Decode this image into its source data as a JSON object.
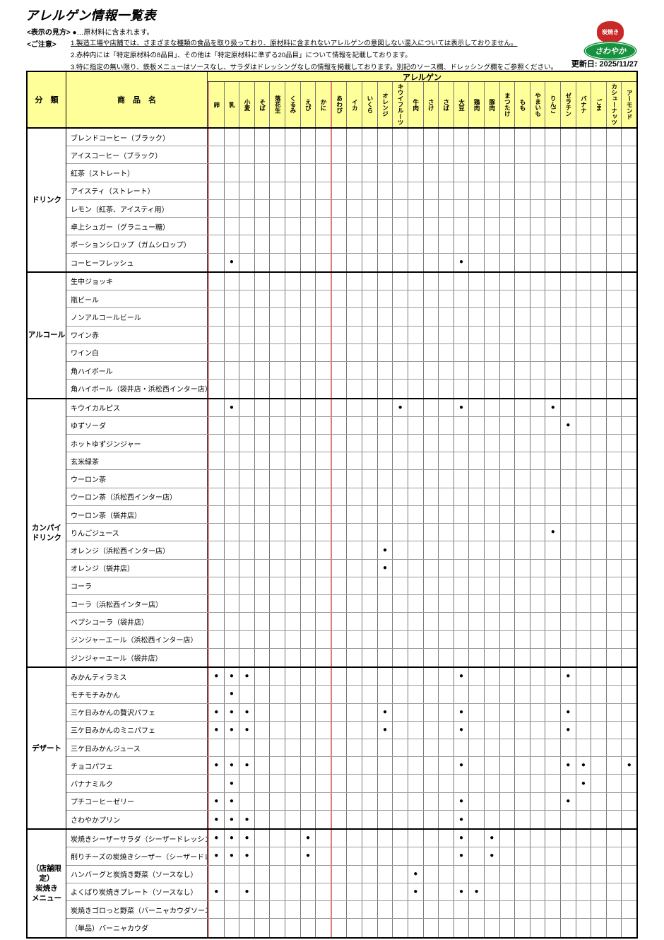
{
  "title": "アレルゲン情報一覧表",
  "legend": {
    "label": "<表示の見方>",
    "text": "●…原材料に含まれます。"
  },
  "notes": {
    "label": "<ご注意>",
    "items": [
      "1.製造工場や店舗では、さまざまな種類の食品を取り扱っており、原材料に含まれないアレルゲンの意図しない混入については表示しておりません。",
      "2.赤枠内には「特定原材料の8品目」、その他は「特定原材料に準ずる20品目」について情報を記載しております。",
      "3.特に指定の無い限り、鉄板メニューはソースなし、サラダはドレッシングなしの情報を掲載しております。別記のソース欄、ドレッシング欄をご参照ください。"
    ]
  },
  "updated": "更新日: 2025/11/27",
  "logo": {
    "top_text": "炭焼き",
    "main_text": "さわやか"
  },
  "colors": {
    "header_yellow": "#ffff99",
    "red_frame": "#e07b7b",
    "logo_red": "#c82828",
    "logo_green": "#17923f"
  },
  "table": {
    "allergen_band": "アレルゲン",
    "col_category": "分　類",
    "col_product": "商　品　名",
    "dot": "●",
    "allergens": [
      "卵",
      "乳",
      "小麦",
      "そば",
      "落花生",
      "くるみ",
      "えび",
      "かに",
      "あわび",
      "イカ",
      "いくら",
      "オレンジ",
      "キウイフルーツ",
      "牛肉",
      "さけ",
      "さば",
      "大豆",
      "鶏肉",
      "豚肉",
      "まつたけ",
      "もも",
      "やまいも",
      "りんご",
      "ゼラチン",
      "バナナ",
      "ごま",
      "カシューナッツ",
      "アーモンド"
    ],
    "red_frame": {
      "start": 0,
      "end": 7
    },
    "sections": [
      {
        "category": "ドリンク",
        "rows": [
          {
            "name": "ブレンドコーヒー（ブラック）",
            "marks": []
          },
          {
            "name": "アイスコーヒー（ブラック）",
            "marks": []
          },
          {
            "name": "紅茶（ストレート）",
            "marks": []
          },
          {
            "name": "アイスティ（ストレート）",
            "marks": []
          },
          {
            "name": "レモン（紅茶、アイスティ用）",
            "marks": []
          },
          {
            "name": "卓上シュガー（グラニュー糖）",
            "marks": []
          },
          {
            "name": "ポーションシロップ（ガムシロップ）",
            "marks": []
          },
          {
            "name": "コーヒーフレッシュ",
            "marks": [
              "乳",
              "大豆"
            ]
          }
        ]
      },
      {
        "category": "アルコール",
        "rows": [
          {
            "name": "生中ジョッキ",
            "marks": []
          },
          {
            "name": "瓶ビール",
            "marks": []
          },
          {
            "name": "ノンアルコールビール",
            "marks": []
          },
          {
            "name": "ワイン赤",
            "marks": []
          },
          {
            "name": "ワイン白",
            "marks": []
          },
          {
            "name": "角ハイボール",
            "marks": []
          },
          {
            "name": "角ハイボール（袋井店・浜松西インター店）",
            "marks": []
          }
        ]
      },
      {
        "category": "カンパイ\nドリンク",
        "rows": [
          {
            "name": "キウイカルピス",
            "marks": [
              "乳",
              "キウイフルーツ",
              "大豆",
              "りんご"
            ]
          },
          {
            "name": "ゆずソーダ",
            "marks": [
              "ゼラチン"
            ]
          },
          {
            "name": "ホットゆずジンジャー",
            "marks": []
          },
          {
            "name": "玄米緑茶",
            "marks": []
          },
          {
            "name": "ウーロン茶",
            "marks": []
          },
          {
            "name": "ウーロン茶（浜松西インター店）",
            "marks": []
          },
          {
            "name": "ウーロン茶（袋井店）",
            "marks": []
          },
          {
            "name": "りんごジュース",
            "marks": [
              "りんご"
            ]
          },
          {
            "name": "オレンジ（浜松西インター店）",
            "marks": [
              "オレンジ"
            ]
          },
          {
            "name": "オレンジ（袋井店）",
            "marks": [
              "オレンジ"
            ]
          },
          {
            "name": "コーラ",
            "marks": []
          },
          {
            "name": "コーラ（浜松西インター店）",
            "marks": []
          },
          {
            "name": "ペプシコーラ（袋井店）",
            "marks": []
          },
          {
            "name": "ジンジャーエール（浜松西インター店）",
            "marks": []
          },
          {
            "name": "ジンジャーエール（袋井店）",
            "marks": []
          }
        ]
      },
      {
        "category": "デザート",
        "rows": [
          {
            "name": "みかんティラミス",
            "marks": [
              "卵",
              "乳",
              "小麦",
              "大豆",
              "ゼラチン"
            ]
          },
          {
            "name": "モチモチみかん",
            "marks": [
              "乳"
            ]
          },
          {
            "name": "三ケ日みかんの贅沢パフェ",
            "marks": [
              "卵",
              "乳",
              "小麦",
              "オレンジ",
              "大豆",
              "ゼラチン"
            ]
          },
          {
            "name": "三ケ日みかんのミニパフェ",
            "marks": [
              "卵",
              "乳",
              "小麦",
              "オレンジ",
              "大豆",
              "ゼラチン"
            ]
          },
          {
            "name": "三ケ日みかんジュース",
            "marks": []
          },
          {
            "name": "チョコパフェ",
            "marks": [
              "卵",
              "乳",
              "小麦",
              "大豆",
              "ゼラチン",
              "バナナ",
              "アーモンド"
            ]
          },
          {
            "name": "バナナミルク",
            "marks": [
              "乳",
              "バナナ"
            ]
          },
          {
            "name": "プチコーヒーゼリー",
            "marks": [
              "卵",
              "乳",
              "大豆",
              "ゼラチン"
            ]
          },
          {
            "name": "さわやかプリン",
            "marks": [
              "卵",
              "乳",
              "小麦",
              "大豆"
            ]
          }
        ]
      },
      {
        "category": "（店舗限定）\n炭焼き\nメニュー",
        "rows": [
          {
            "name": "炭焼きシーザーサラダ（シーザードレッシング）",
            "marks": [
              "卵",
              "乳",
              "小麦",
              "えび",
              "大豆",
              "豚肉"
            ]
          },
          {
            "name": "削りチーズの炭焼きシーザー（シーザードレッシング）",
            "marks": [
              "卵",
              "乳",
              "小麦",
              "えび",
              "大豆",
              "豚肉"
            ]
          },
          {
            "name": "ハンバーグと炭焼き野菜（ソースなし）",
            "marks": [
              "牛肉"
            ]
          },
          {
            "name": "よくばり炭焼きプレート（ソースなし）",
            "marks": [
              "卵",
              "小麦",
              "牛肉",
              "大豆",
              "鶏肉"
            ]
          },
          {
            "name": "炭焼きゴロっと野菜（バーニャカウダソース付き）",
            "marks": []
          },
          {
            "name": "（単品）バーニャカウダ",
            "marks": []
          }
        ]
      }
    ]
  }
}
